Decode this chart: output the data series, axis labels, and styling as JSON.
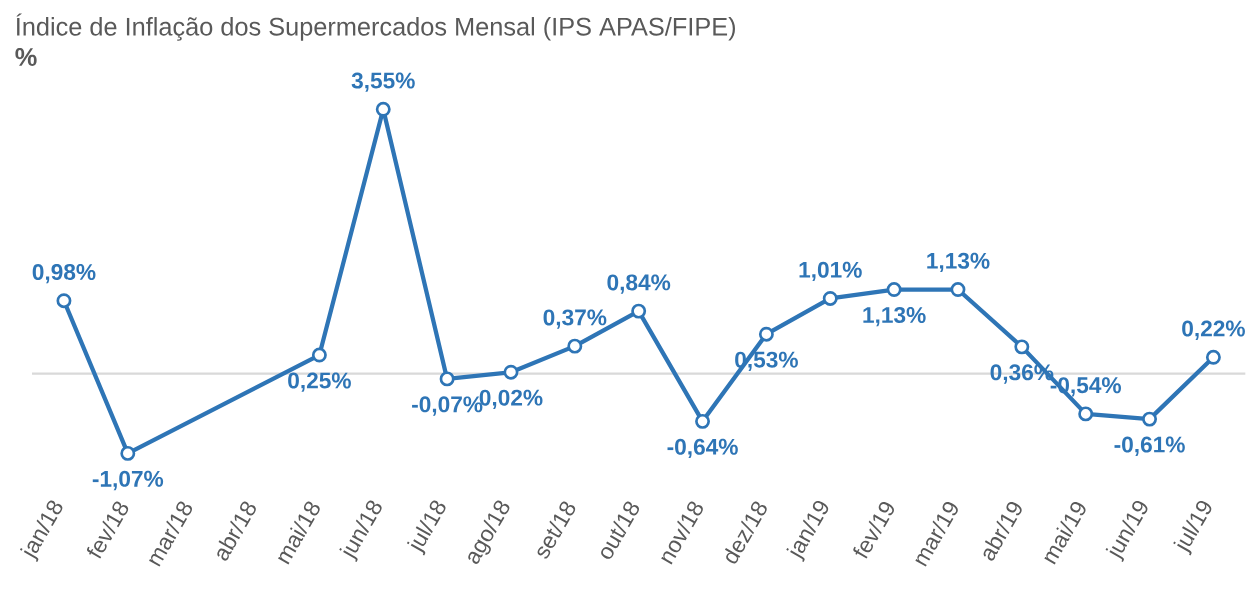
{
  "chart_data": {
    "type": "line",
    "title": "Índice de Inflação dos Supermercados Mensal (IPS APAS/FIPE)",
    "ylabel": "%",
    "categories": [
      "jan/18",
      "fev/18",
      "mar/18",
      "abr/18",
      "mai/18",
      "jun/18",
      "jul/18",
      "ago/18",
      "set/18",
      "out/18",
      "nov/18",
      "dez/18",
      "jan/19",
      "fev/19",
      "mar/19",
      "abr/19",
      "mai/19",
      "jun/19",
      "jul/19"
    ],
    "values": [
      0.98,
      -1.07,
      null,
      null,
      0.25,
      3.55,
      -0.07,
      0.02,
      0.37,
      0.84,
      -0.64,
      0.53,
      1.01,
      1.13,
      1.13,
      0.36,
      -0.54,
      -0.61,
      0.22
    ],
    "value_labels": [
      "0,98%",
      "-1,07%",
      null,
      null,
      "0,25%",
      "3,55%",
      "-0,07%",
      "0,02%",
      "0,37%",
      "0,84%",
      "-0,64%",
      "0,53%",
      "1,01%",
      "1,13%",
      "1,13%",
      "0,36%",
      "-0,54%",
      "-0,61%",
      "0,22%"
    ],
    "color": "#2e75b6",
    "marker": "circle",
    "ref_lines": [
      {
        "axis": "y",
        "value": 0,
        "color": "#d9d9d9"
      }
    ]
  }
}
